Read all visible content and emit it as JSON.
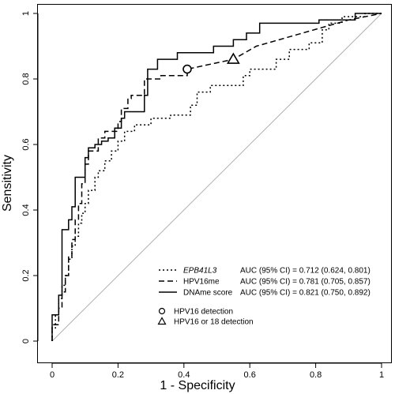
{
  "chart_data": {
    "type": "line",
    "title": "",
    "xlabel": "1 - Specificity",
    "ylabel": "Sensitivity",
    "xlim": [
      0,
      1
    ],
    "ylim": [
      0,
      1
    ],
    "x_ticks": [
      "0",
      "0.2",
      "0.4",
      "0.6",
      "0.8",
      "1"
    ],
    "y_ticks": [
      "0",
      "0.2",
      "0.4",
      "0.6",
      "0.8",
      "1"
    ],
    "grid": false,
    "reference_line": {
      "from": [
        0,
        0
      ],
      "to": [
        1,
        1
      ],
      "color": "#b0b0b0"
    },
    "legend_position": "bottom-right",
    "series": [
      {
        "name": "EPB41L3",
        "italic": true,
        "style": "dotted",
        "auc_text": "AUC (95% CI) = 0.712 (0.624, 0.801)",
        "points": [
          [
            0,
            0
          ],
          [
            0,
            0.04
          ],
          [
            0.01,
            0.04
          ],
          [
            0.01,
            0.08
          ],
          [
            0.02,
            0.08
          ],
          [
            0.02,
            0.13
          ],
          [
            0.03,
            0.13
          ],
          [
            0.03,
            0.17
          ],
          [
            0.04,
            0.17
          ],
          [
            0.04,
            0.2
          ],
          [
            0.05,
            0.2
          ],
          [
            0.05,
            0.25
          ],
          [
            0.06,
            0.25
          ],
          [
            0.06,
            0.29
          ],
          [
            0.07,
            0.29
          ],
          [
            0.07,
            0.32
          ],
          [
            0.08,
            0.32
          ],
          [
            0.08,
            0.36
          ],
          [
            0.09,
            0.36
          ],
          [
            0.09,
            0.39
          ],
          [
            0.1,
            0.39
          ],
          [
            0.1,
            0.42
          ],
          [
            0.11,
            0.42
          ],
          [
            0.11,
            0.46
          ],
          [
            0.13,
            0.46
          ],
          [
            0.13,
            0.5
          ],
          [
            0.14,
            0.5
          ],
          [
            0.14,
            0.52
          ],
          [
            0.16,
            0.52
          ],
          [
            0.16,
            0.55
          ],
          [
            0.18,
            0.55
          ],
          [
            0.18,
            0.58
          ],
          [
            0.2,
            0.58
          ],
          [
            0.2,
            0.61
          ],
          [
            0.22,
            0.61
          ],
          [
            0.22,
            0.64
          ],
          [
            0.25,
            0.64
          ],
          [
            0.25,
            0.66
          ],
          [
            0.3,
            0.66
          ],
          [
            0.3,
            0.68
          ],
          [
            0.36,
            0.68
          ],
          [
            0.36,
            0.69
          ],
          [
            0.42,
            0.69
          ],
          [
            0.42,
            0.72
          ],
          [
            0.44,
            0.72
          ],
          [
            0.44,
            0.76
          ],
          [
            0.48,
            0.76
          ],
          [
            0.48,
            0.78
          ],
          [
            0.58,
            0.78
          ],
          [
            0.58,
            0.81
          ],
          [
            0.6,
            0.81
          ],
          [
            0.6,
            0.83
          ],
          [
            0.68,
            0.83
          ],
          [
            0.68,
            0.86
          ],
          [
            0.72,
            0.86
          ],
          [
            0.72,
            0.89
          ],
          [
            0.78,
            0.89
          ],
          [
            0.78,
            0.91
          ],
          [
            0.82,
            0.91
          ],
          [
            0.82,
            0.95
          ],
          [
            0.84,
            0.95
          ],
          [
            0.84,
            0.97
          ],
          [
            0.88,
            0.97
          ],
          [
            0.88,
            0.99
          ],
          [
            0.95,
            0.99
          ],
          [
            0.95,
            1
          ],
          [
            1,
            1
          ]
        ]
      },
      {
        "name": "HPV16me",
        "italic": false,
        "style": "dashed",
        "auc_text": "AUC (95% CI) = 0.781 (0.705, 0.857)",
        "points": [
          [
            0,
            0
          ],
          [
            0,
            0.05
          ],
          [
            0.02,
            0.05
          ],
          [
            0.02,
            0.1
          ],
          [
            0.03,
            0.1
          ],
          [
            0.03,
            0.15
          ],
          [
            0.04,
            0.15
          ],
          [
            0.04,
            0.2
          ],
          [
            0.05,
            0.2
          ],
          [
            0.05,
            0.26
          ],
          [
            0.06,
            0.26
          ],
          [
            0.06,
            0.31
          ],
          [
            0.07,
            0.31
          ],
          [
            0.07,
            0.37
          ],
          [
            0.08,
            0.37
          ],
          [
            0.08,
            0.42
          ],
          [
            0.09,
            0.42
          ],
          [
            0.09,
            0.48
          ],
          [
            0.1,
            0.48
          ],
          [
            0.1,
            0.54
          ],
          [
            0.11,
            0.54
          ],
          [
            0.11,
            0.58
          ],
          [
            0.14,
            0.58
          ],
          [
            0.14,
            0.62
          ],
          [
            0.16,
            0.62
          ],
          [
            0.16,
            0.64
          ],
          [
            0.2,
            0.64
          ],
          [
            0.2,
            0.67
          ],
          [
            0.21,
            0.67
          ],
          [
            0.21,
            0.71
          ],
          [
            0.23,
            0.71
          ],
          [
            0.23,
            0.74
          ],
          [
            0.24,
            0.74
          ],
          [
            0.24,
            0.75
          ],
          [
            0.28,
            0.75
          ],
          [
            0.28,
            0.8
          ],
          [
            0.33,
            0.8
          ],
          [
            0.33,
            0.81
          ],
          [
            0.41,
            0.81
          ],
          [
            0.41,
            0.83
          ],
          [
            0.55,
            0.86
          ],
          [
            0.62,
            0.9
          ],
          [
            0.9,
            0.98
          ],
          [
            1,
            1
          ]
        ]
      },
      {
        "name": "DNAme score",
        "italic": false,
        "style": "solid",
        "auc_text": "AUC (95% CI) = 0.821 (0.750, 0.892)",
        "points": [
          [
            0,
            0
          ],
          [
            0,
            0.08
          ],
          [
            0.02,
            0.08
          ],
          [
            0.02,
            0.14
          ],
          [
            0.03,
            0.14
          ],
          [
            0.03,
            0.25
          ],
          [
            0.03,
            0.34
          ],
          [
            0.05,
            0.34
          ],
          [
            0.05,
            0.37
          ],
          [
            0.06,
            0.37
          ],
          [
            0.06,
            0.41
          ],
          [
            0.07,
            0.41
          ],
          [
            0.07,
            0.5
          ],
          [
            0.1,
            0.5
          ],
          [
            0.1,
            0.56
          ],
          [
            0.11,
            0.56
          ],
          [
            0.11,
            0.59
          ],
          [
            0.13,
            0.59
          ],
          [
            0.13,
            0.6
          ],
          [
            0.15,
            0.6
          ],
          [
            0.15,
            0.61
          ],
          [
            0.17,
            0.61
          ],
          [
            0.17,
            0.62
          ],
          [
            0.19,
            0.62
          ],
          [
            0.19,
            0.65
          ],
          [
            0.21,
            0.65
          ],
          [
            0.21,
            0.68
          ],
          [
            0.22,
            0.68
          ],
          [
            0.22,
            0.7
          ],
          [
            0.28,
            0.7
          ],
          [
            0.28,
            0.75
          ],
          [
            0.29,
            0.75
          ],
          [
            0.29,
            0.83
          ],
          [
            0.32,
            0.83
          ],
          [
            0.32,
            0.86
          ],
          [
            0.38,
            0.86
          ],
          [
            0.38,
            0.88
          ],
          [
            0.49,
            0.88
          ],
          [
            0.49,
            0.9
          ],
          [
            0.55,
            0.9
          ],
          [
            0.55,
            0.92
          ],
          [
            0.59,
            0.92
          ],
          [
            0.59,
            0.94
          ],
          [
            0.63,
            0.94
          ],
          [
            0.63,
            0.97
          ],
          [
            0.81,
            0.97
          ],
          [
            0.81,
            0.98
          ],
          [
            0.92,
            0.98
          ],
          [
            0.92,
            1
          ],
          [
            1,
            1
          ]
        ]
      }
    ],
    "markers": [
      {
        "shape": "circle",
        "label": "HPV16 detection",
        "x": 0.41,
        "y": 0.83
      },
      {
        "shape": "triangle",
        "label": "HPV16 or 18 detection",
        "x": 0.55,
        "y": 0.86
      }
    ]
  }
}
